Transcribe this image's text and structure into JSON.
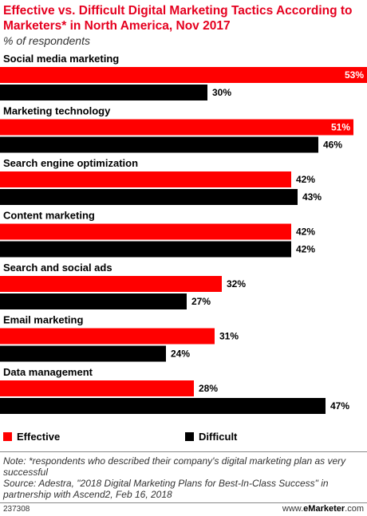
{
  "chart_data": {
    "type": "bar",
    "orientation": "horizontal",
    "title": "Effective vs. Difficult Digital Marketing Tactics According to Marketers* in North America, Nov 2017",
    "subtitle": "% of respondents",
    "categories": [
      "Social media marketing",
      "Marketing technology",
      "Search engine optimization",
      "Content marketing",
      "Search and social ads",
      "Email marketing",
      "Data management"
    ],
    "series": [
      {
        "name": "Effective",
        "color": "#ff0000",
        "values": [
          53,
          51,
          42,
          42,
          32,
          31,
          28
        ],
        "labels": [
          "53%",
          "51%",
          "42%",
          "42%",
          "32%",
          "31%",
          "28%"
        ]
      },
      {
        "name": "Difficult",
        "color": "#000000",
        "values": [
          30,
          46,
          43,
          42,
          27,
          24,
          47
        ],
        "labels": [
          "30%",
          "46%",
          "43%",
          "42%",
          "27%",
          "24%",
          "47%"
        ]
      }
    ],
    "xlim": [
      0,
      53
    ],
    "grid": false,
    "legend_position": "bottom"
  },
  "footer": {
    "note": "Note: *respondents who described their company's digital marketing plan as very successful",
    "source": "Source: Adestra, \"2018 Digital Marketing Plans for Best-In-Class Success\" in partnership with Ascend2, Feb 16, 2018",
    "chart_id": "237308",
    "brand_prefix": "www.",
    "brand_name": "eMarketer",
    "brand_suffix": ".com"
  }
}
